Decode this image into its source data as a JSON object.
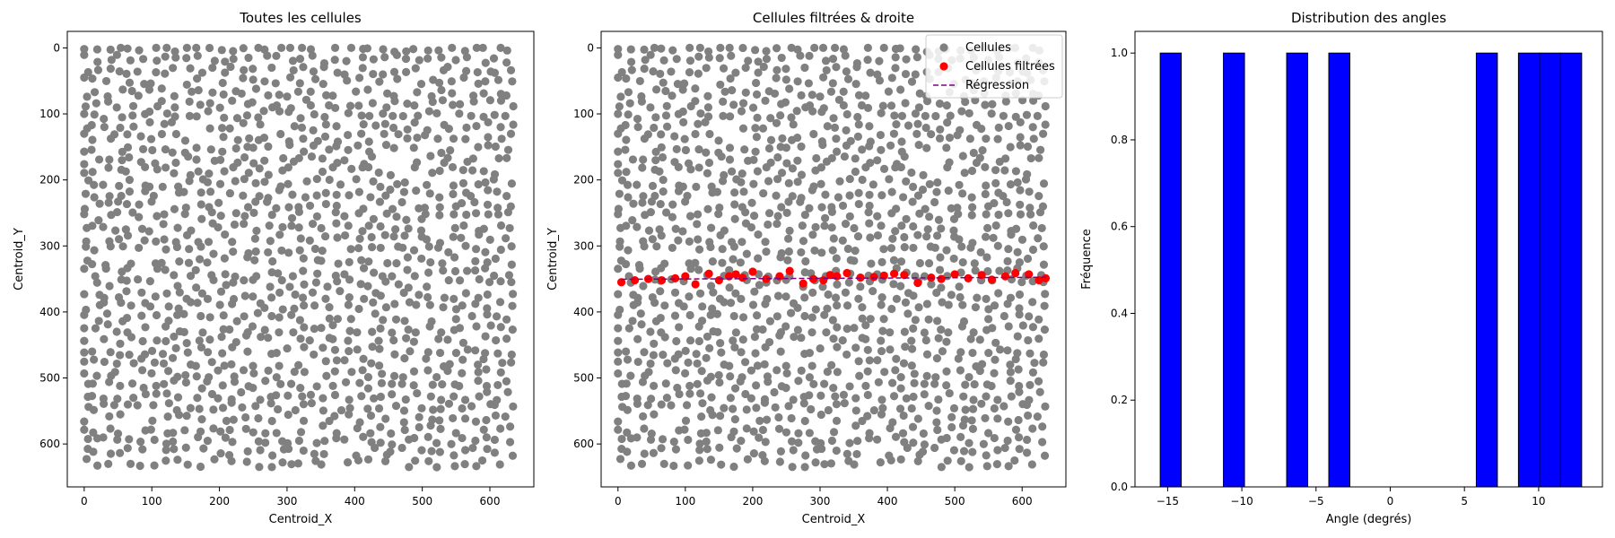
{
  "chart_data": [
    {
      "type": "scatter",
      "title": "Toutes les cellules",
      "xlabel": "Centroid_X",
      "ylabel": "Centroid_Y",
      "xlim": [
        -25,
        665
      ],
      "ylim": [
        665,
        -25
      ],
      "y_inverted": true,
      "xticks": [
        0,
        100,
        200,
        300,
        400,
        500,
        600
      ],
      "yticks": [
        0,
        100,
        200,
        300,
        400,
        500,
        600
      ],
      "series": [
        {
          "color": "#808080",
          "points_note_generated": "approx. 1400 cells uniformly distributed over x 0-640, y 0-640"
        }
      ]
    },
    {
      "type": "scatter",
      "title": "Cellules filtrées & droite",
      "xlabel": "Centroid_X",
      "ylabel": "Centroid_Y",
      "xlim": [
        -25,
        665
      ],
      "ylim": [
        665,
        -25
      ],
      "y_inverted": true,
      "xticks": [
        0,
        100,
        200,
        300,
        400,
        500,
        600
      ],
      "yticks": [
        0,
        100,
        200,
        300,
        400,
        500,
        600
      ],
      "legend_position": "top-right",
      "legend": [
        "Cellules",
        "Cellules filtrées",
        "Régression"
      ],
      "series": [
        {
          "name": "Cellules",
          "color": "#808080"
        },
        {
          "name": "Cellules filtrées",
          "color": "#ff0000",
          "x": [
            5,
            25,
            45,
            65,
            85,
            100,
            115,
            135,
            150,
            165,
            175,
            185,
            200,
            220,
            240,
            255,
            275,
            290,
            305,
            315,
            325,
            340,
            360,
            380,
            395,
            410,
            425,
            445,
            465,
            480,
            500,
            520,
            540,
            555,
            575,
            590,
            610,
            625,
            635
          ],
          "y": [
            355,
            352,
            350,
            352,
            349,
            346,
            358,
            342,
            352,
            346,
            343,
            348,
            339,
            350,
            346,
            338,
            357,
            350,
            352,
            344,
            346,
            341,
            348,
            347,
            345,
            342,
            344,
            356,
            348,
            350,
            343,
            349,
            344,
            351,
            346,
            341,
            343,
            352,
            349
          ]
        },
        {
          "name": "Régression",
          "color": "#800080",
          "style": "dashed",
          "x": [
            5,
            635
          ],
          "y": [
            350.5,
            347.5
          ]
        }
      ]
    },
    {
      "type": "bar",
      "title": "Distribution des angles",
      "xlabel": "Angle (degrés)",
      "ylabel": "Fréquence",
      "xlim": [
        -17.2,
        14.3
      ],
      "ylim": [
        0,
        1.05
      ],
      "xticks": [
        -15,
        -10,
        -5,
        0,
        5,
        10
      ],
      "yticks": [
        "0.0",
        "0.2",
        "0.4",
        "0.6",
        "0.8",
        "1.0"
      ],
      "bar_color": "#0000ff",
      "bin_edges": [
        -15.5,
        -14.08,
        -11.24,
        -9.82,
        -6.98,
        -5.56,
        -4.14,
        -2.72,
        5.8,
        7.22,
        8.64,
        10.06,
        11.48,
        12.9
      ],
      "bins": [
        {
          "x0": -15.5,
          "x1": -14.08,
          "value": 1
        },
        {
          "x0": -11.24,
          "x1": -9.82,
          "value": 1
        },
        {
          "x0": -6.98,
          "x1": -5.56,
          "value": 1
        },
        {
          "x0": -4.14,
          "x1": -2.72,
          "value": 1
        },
        {
          "x0": 5.8,
          "x1": 7.22,
          "value": 1
        },
        {
          "x0": 8.64,
          "x1": 10.06,
          "value": 1
        },
        {
          "x0": 10.06,
          "x1": 11.48,
          "value": 1
        },
        {
          "x0": 11.48,
          "x1": 12.9,
          "value": 1
        }
      ]
    }
  ]
}
